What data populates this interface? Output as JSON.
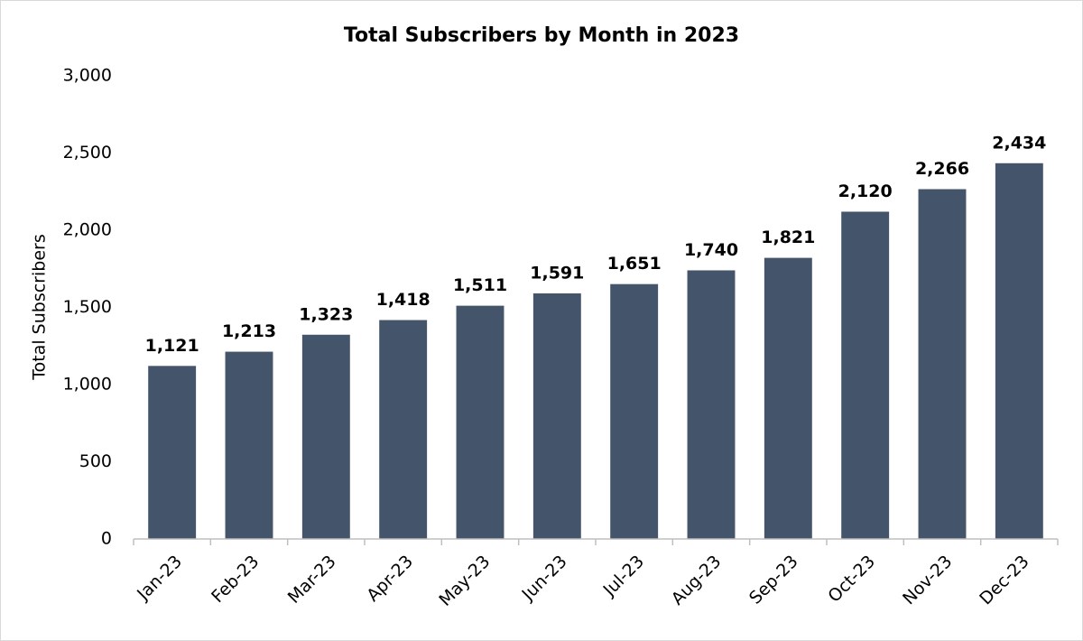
{
  "chart_data": {
    "type": "bar",
    "title": "Total Subscribers by Month in 2023",
    "y_label": "Total Subscribers",
    "categories": [
      "Jan-23",
      "Feb-23",
      "Mar-23",
      "Apr-23",
      "May-23",
      "Jun-23",
      "Jul-23",
      "Aug-23",
      "Sep-23",
      "Oct-23",
      "Nov-23",
      "Dec-23"
    ],
    "values": [
      1121,
      1213,
      1323,
      1418,
      1511,
      1591,
      1651,
      1740,
      1821,
      2120,
      2266,
      2434
    ],
    "value_labels": [
      "1,121",
      "1,213",
      "1,323",
      "1,418",
      "1,511",
      "1,591",
      "1,651",
      "1,740",
      "1,821",
      "2,120",
      "2,266",
      "2,434"
    ],
    "color": "#44546a",
    "ylim": [
      0,
      3000
    ],
    "yticks": [
      0,
      500,
      {
        "value": 1000,
        "label": "1,000"
      },
      {
        "value": 1500,
        "label": "1,500"
      },
      {
        "value": 2000,
        "label": "2,000"
      },
      {
        "value": 2500,
        "label": "2,500"
      },
      {
        "value": 3000,
        "label": "3,000"
      }
    ],
    "grid": false
  }
}
